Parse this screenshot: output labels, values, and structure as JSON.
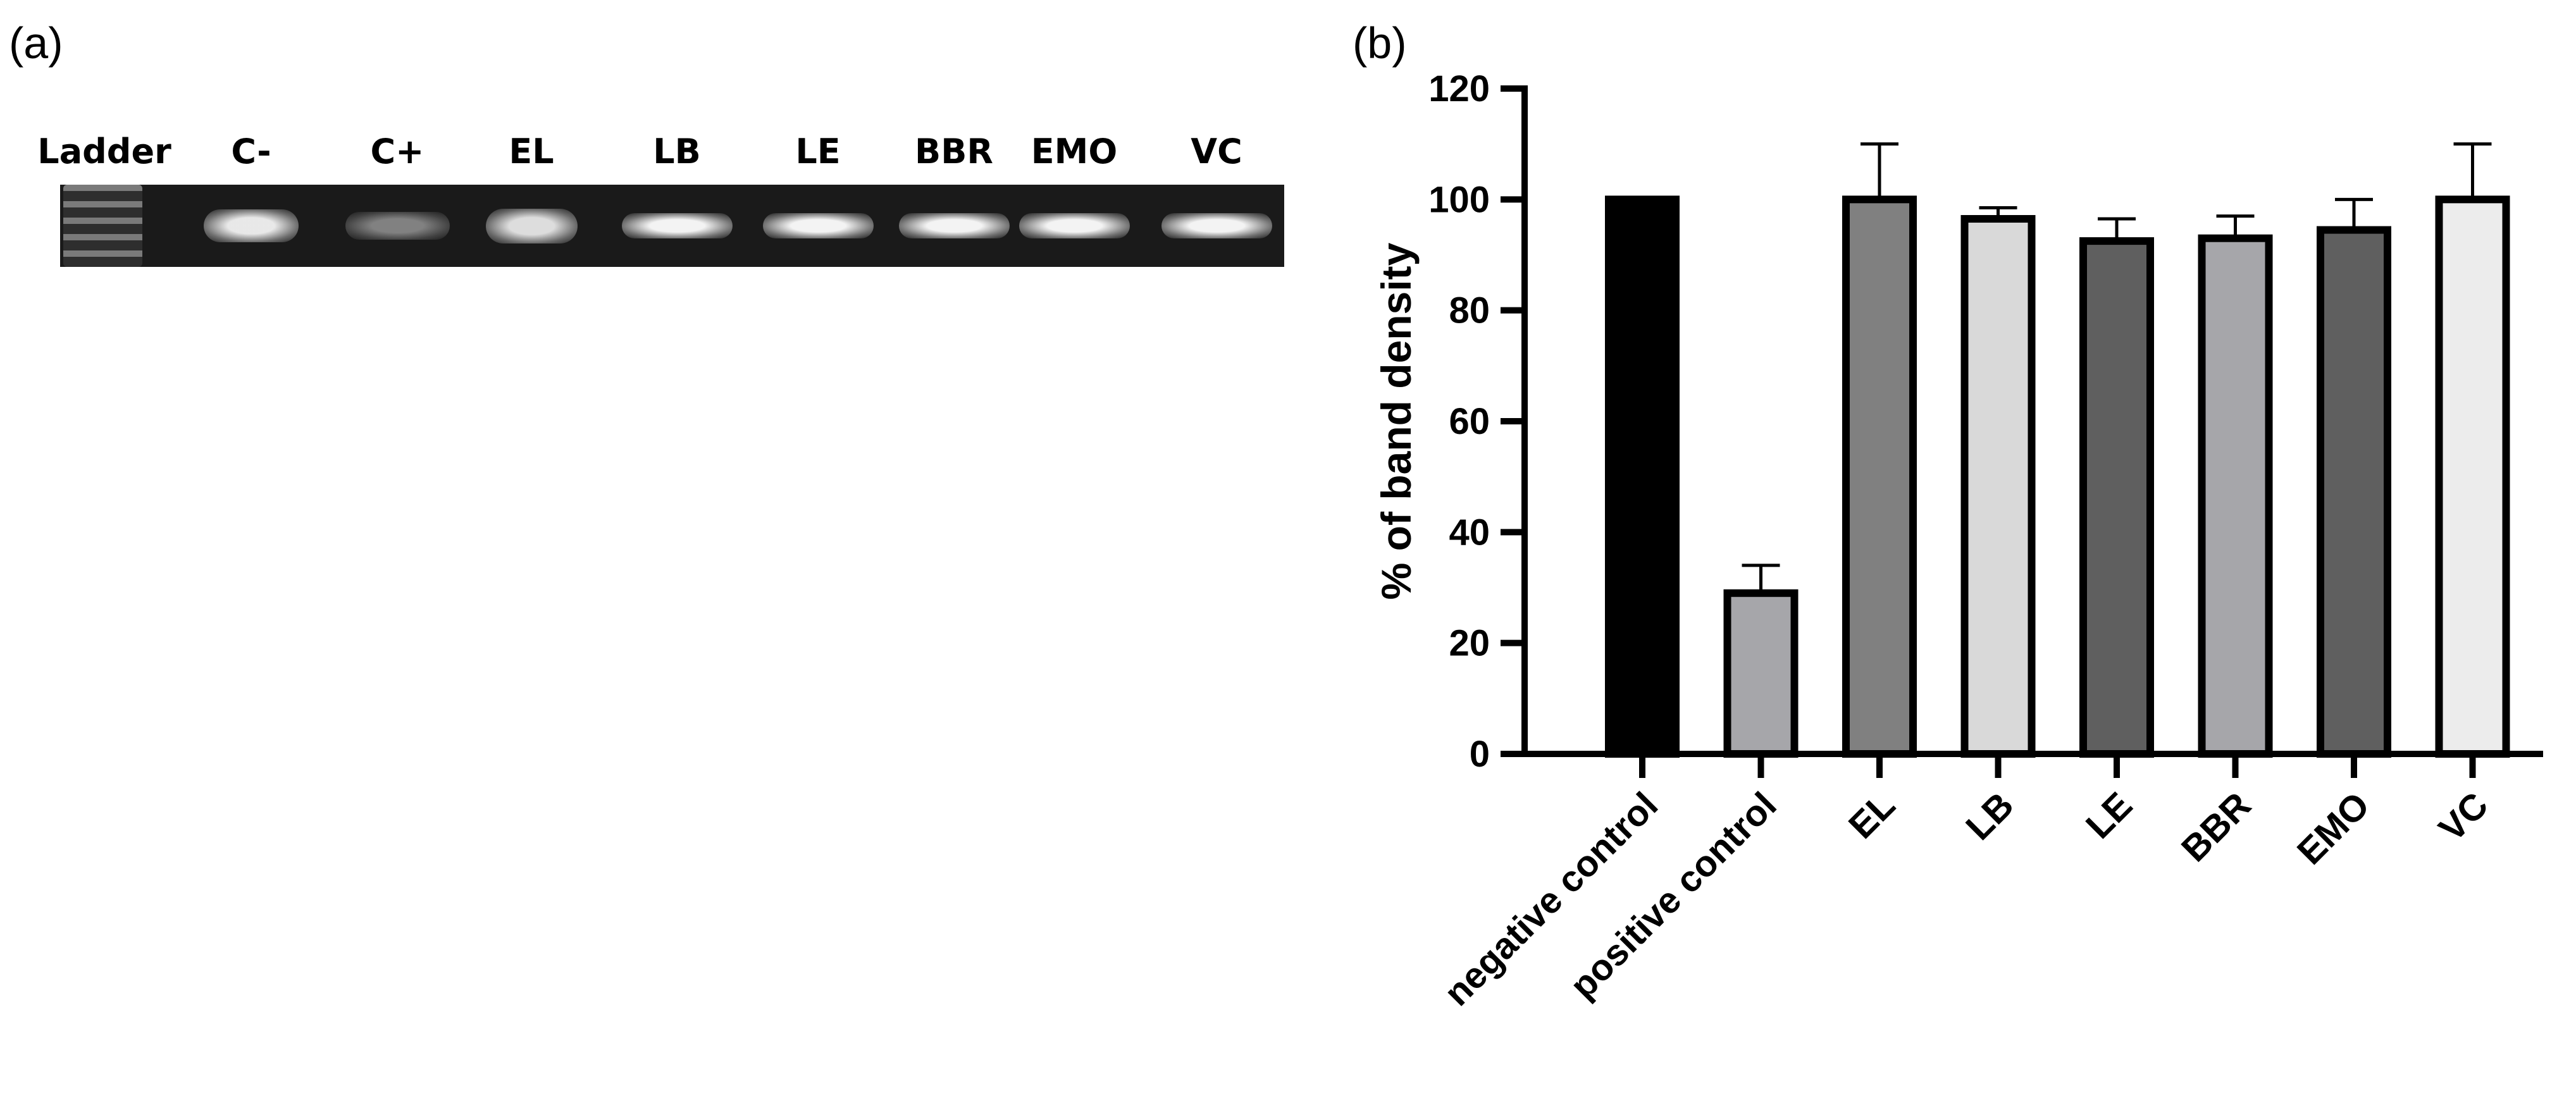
{
  "panel_a": {
    "label": "(a)",
    "lanes": [
      "Ladder",
      "C-",
      "C+",
      "EL",
      "LB",
      "LE",
      "BBR",
      "EMO",
      "VC"
    ]
  },
  "panel_b": {
    "label": "(b)"
  },
  "chart_data": {
    "type": "bar",
    "categories": [
      "negative control",
      "positive control",
      "EL",
      "LB",
      "LE",
      "BBR",
      "EMO",
      "VC"
    ],
    "values": [
      100,
      29,
      100,
      96.5,
      92.5,
      93,
      94.5,
      100
    ],
    "errors": [
      0,
      5,
      10,
      2,
      4,
      4,
      5.5,
      10
    ],
    "bar_colors": [
      "#000000",
      "#a6a6aa",
      "#808080",
      "#d9d9d9",
      "#5f5f5f",
      "#a6a6aa",
      "#5f5f5f",
      "#ececec"
    ],
    "title": "",
    "xlabel": "",
    "ylabel": "% of band density",
    "ylim": [
      0,
      120
    ],
    "yticks": [
      0,
      20,
      40,
      60,
      80,
      100,
      120
    ],
    "grid": false,
    "legend": "none"
  }
}
